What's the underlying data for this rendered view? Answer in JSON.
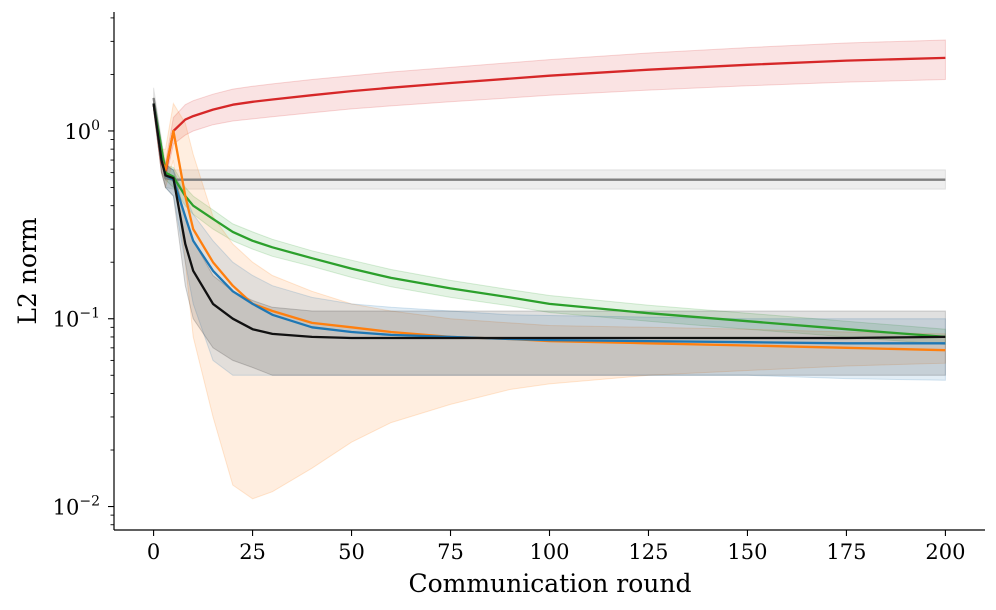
{
  "chart_data": {
    "type": "line",
    "title": "",
    "xlabel": "Communication round",
    "ylabel": "L2 norm",
    "xlim": [
      -10,
      210
    ],
    "ylim": [
      0.0075,
      4.3
    ],
    "yscale": "log",
    "grid": false,
    "legend": "none",
    "x_ticks": [
      {
        "value": 0,
        "label": "0"
      },
      {
        "value": 25,
        "label": "25"
      },
      {
        "value": 50,
        "label": "50"
      },
      {
        "value": 75,
        "label": "75"
      },
      {
        "value": 100,
        "label": "100"
      },
      {
        "value": 125,
        "label": "125"
      },
      {
        "value": 150,
        "label": "150"
      },
      {
        "value": 175,
        "label": "175"
      },
      {
        "value": 200,
        "label": "200"
      }
    ],
    "y_ticks": [
      {
        "value": 1,
        "base": "10",
        "exp": "0"
      },
      {
        "value": 0.1,
        "base": "10",
        "exp": "−1"
      },
      {
        "value": 0.01,
        "base": "10",
        "exp": "−2"
      }
    ],
    "x": [
      0,
      2,
      3,
      5,
      8,
      10,
      15,
      20,
      25,
      30,
      40,
      50,
      60,
      75,
      90,
      100,
      125,
      150,
      175,
      200
    ],
    "series": [
      {
        "name": "red",
        "color": "#d62728",
        "values": [
          1.4,
          0.68,
          0.6,
          1.0,
          1.15,
          1.2,
          1.3,
          1.38,
          1.43,
          1.47,
          1.55,
          1.63,
          1.7,
          1.8,
          1.9,
          1.97,
          2.12,
          2.25,
          2.37,
          2.45
        ],
        "lower": [
          1.3,
          0.6,
          0.55,
          0.85,
          0.95,
          1.0,
          1.08,
          1.13,
          1.16,
          1.19,
          1.25,
          1.31,
          1.36,
          1.43,
          1.5,
          1.55,
          1.65,
          1.74,
          1.82,
          1.88
        ],
        "upper": [
          1.5,
          0.76,
          0.68,
          1.18,
          1.38,
          1.45,
          1.57,
          1.67,
          1.73,
          1.78,
          1.88,
          1.97,
          2.06,
          2.18,
          2.31,
          2.4,
          2.6,
          2.78,
          2.94,
          3.05
        ]
      },
      {
        "name": "gray",
        "color": "#7f7f7f",
        "values": [
          1.5,
          0.8,
          0.56,
          0.55,
          0.55,
          0.55,
          0.55,
          0.55,
          0.55,
          0.55,
          0.55,
          0.55,
          0.55,
          0.55,
          0.55,
          0.55,
          0.55,
          0.55,
          0.55,
          0.55
        ],
        "lower": [
          1.35,
          0.7,
          0.5,
          0.49,
          0.49,
          0.49,
          0.49,
          0.49,
          0.49,
          0.49,
          0.49,
          0.49,
          0.49,
          0.49,
          0.49,
          0.49,
          0.49,
          0.49,
          0.49,
          0.49
        ],
        "upper": [
          1.7,
          0.9,
          0.64,
          0.62,
          0.62,
          0.62,
          0.62,
          0.62,
          0.62,
          0.62,
          0.62,
          0.62,
          0.62,
          0.62,
          0.62,
          0.62,
          0.62,
          0.62,
          0.62,
          0.62
        ]
      },
      {
        "name": "green",
        "color": "#2ca02c",
        "values": [
          1.4,
          0.8,
          0.6,
          0.57,
          0.45,
          0.4,
          0.34,
          0.29,
          0.26,
          0.24,
          0.21,
          0.185,
          0.165,
          0.145,
          0.13,
          0.12,
          0.107,
          0.097,
          0.088,
          0.08
        ],
        "lower": [
          1.3,
          0.72,
          0.55,
          0.5,
          0.4,
          0.36,
          0.3,
          0.26,
          0.235,
          0.215,
          0.19,
          0.166,
          0.148,
          0.13,
          0.117,
          0.108,
          0.097,
          0.088,
          0.08,
          0.073
        ],
        "upper": [
          1.5,
          0.88,
          0.66,
          0.64,
          0.5,
          0.45,
          0.38,
          0.32,
          0.29,
          0.265,
          0.23,
          0.205,
          0.183,
          0.16,
          0.143,
          0.133,
          0.118,
          0.107,
          0.097,
          0.088
        ]
      },
      {
        "name": "orange",
        "color": "#ff7f0e",
        "values": [
          1.4,
          0.7,
          0.62,
          1.0,
          0.45,
          0.3,
          0.2,
          0.15,
          0.12,
          0.11,
          0.095,
          0.09,
          0.085,
          0.08,
          0.078,
          0.076,
          0.074,
          0.072,
          0.07,
          0.068
        ],
        "lower": [
          1.3,
          0.6,
          0.5,
          0.7,
          0.2,
          0.08,
          0.03,
          0.013,
          0.011,
          0.012,
          0.016,
          0.022,
          0.028,
          0.035,
          0.042,
          0.045,
          0.05,
          0.053,
          0.056,
          0.058
        ],
        "upper": [
          1.5,
          0.8,
          0.8,
          1.4,
          1.1,
          0.75,
          0.35,
          0.25,
          0.2,
          0.17,
          0.14,
          0.12,
          0.11,
          0.1,
          0.095,
          0.092,
          0.09,
          0.088,
          0.085,
          0.083
        ]
      },
      {
        "name": "blue",
        "color": "#1f77b4",
        "values": [
          1.4,
          0.7,
          0.58,
          0.55,
          0.35,
          0.26,
          0.18,
          0.14,
          0.12,
          0.105,
          0.09,
          0.085,
          0.082,
          0.08,
          0.078,
          0.077,
          0.076,
          0.075,
          0.074,
          0.074
        ],
        "lower": [
          1.3,
          0.6,
          0.5,
          0.45,
          0.2,
          0.12,
          0.06,
          0.05,
          0.05,
          0.05,
          0.05,
          0.05,
          0.05,
          0.05,
          0.05,
          0.05,
          0.05,
          0.05,
          0.048,
          0.047
        ],
        "upper": [
          1.5,
          0.8,
          0.66,
          0.62,
          0.45,
          0.36,
          0.26,
          0.2,
          0.17,
          0.15,
          0.13,
          0.12,
          0.115,
          0.11,
          0.105,
          0.104,
          0.102,
          0.1,
          0.1,
          0.1
        ]
      },
      {
        "name": "black",
        "color": "#111111",
        "values": [
          1.4,
          0.7,
          0.58,
          0.56,
          0.25,
          0.18,
          0.12,
          0.1,
          0.088,
          0.083,
          0.08,
          0.079,
          0.079,
          0.079,
          0.079,
          0.079,
          0.079,
          0.079,
          0.079,
          0.08
        ],
        "lower": [
          1.3,
          0.6,
          0.5,
          0.45,
          0.15,
          0.1,
          0.07,
          0.06,
          0.055,
          0.05,
          0.05,
          0.05,
          0.05,
          0.05,
          0.05,
          0.05,
          0.05,
          0.05,
          0.05,
          0.05
        ],
        "upper": [
          1.5,
          0.8,
          0.66,
          0.62,
          0.35,
          0.26,
          0.17,
          0.14,
          0.125,
          0.115,
          0.11,
          0.11,
          0.11,
          0.11,
          0.11,
          0.11,
          0.11,
          0.11,
          0.11,
          0.11
        ]
      }
    ]
  }
}
